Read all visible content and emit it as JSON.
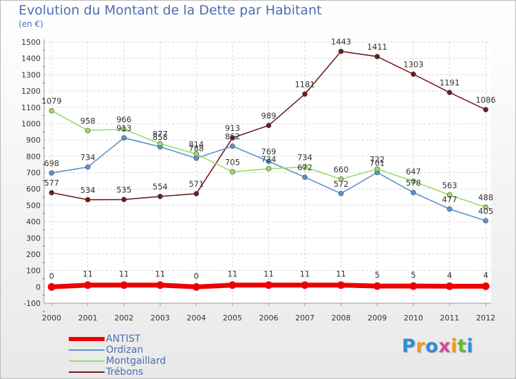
{
  "title": "Evolution du Montant de la Dette par Habitant",
  "subtitle": "(en €)",
  "chart_data": {
    "type": "line",
    "x": [
      "2000",
      "2001",
      "2002",
      "2003",
      "2004",
      "2005",
      "2006",
      "2007",
      "2008",
      "2009",
      "2010",
      "2011",
      "2012"
    ],
    "ylim": [
      -100,
      1500
    ],
    "yticks": [
      -100,
      0,
      100,
      200,
      300,
      400,
      500,
      600,
      700,
      800,
      900,
      1000,
      1100,
      1200,
      1300,
      1400,
      1500
    ],
    "grid": true,
    "legend_position": "bottom-left",
    "series": [
      {
        "name": "ANTIST",
        "color": "#ee0000",
        "values": [
          0,
          11,
          11,
          11,
          0,
          11,
          11,
          11,
          11,
          5,
          5,
          4,
          4
        ]
      },
      {
        "name": "Ordizan",
        "color": "#5a93cc",
        "values": [
          698,
          734,
          913,
          858,
          788,
          862,
          769,
          672,
          572,
          701,
          578,
          477,
          405
        ]
      },
      {
        "name": "Montgaillard",
        "color": "#99dd66",
        "values": [
          1079,
          958,
          966,
          877,
          814,
          705,
          724,
          734,
          660,
          722,
          647,
          563,
          488
        ]
      },
      {
        "name": "Trébons",
        "color": "#6e1c1c",
        "values": [
          577,
          534,
          535,
          554,
          571,
          913,
          989,
          1181,
          1443,
          1411,
          1303,
          1191,
          1086
        ]
      }
    ]
  },
  "logo": {
    "text": "Proxiti",
    "colors": [
      "#2f8ed6",
      "#f29a1a",
      "#2f8ed6",
      "#d64b9a",
      "#f29a1a",
      "#6aba2f",
      "#2f8ed6"
    ]
  }
}
